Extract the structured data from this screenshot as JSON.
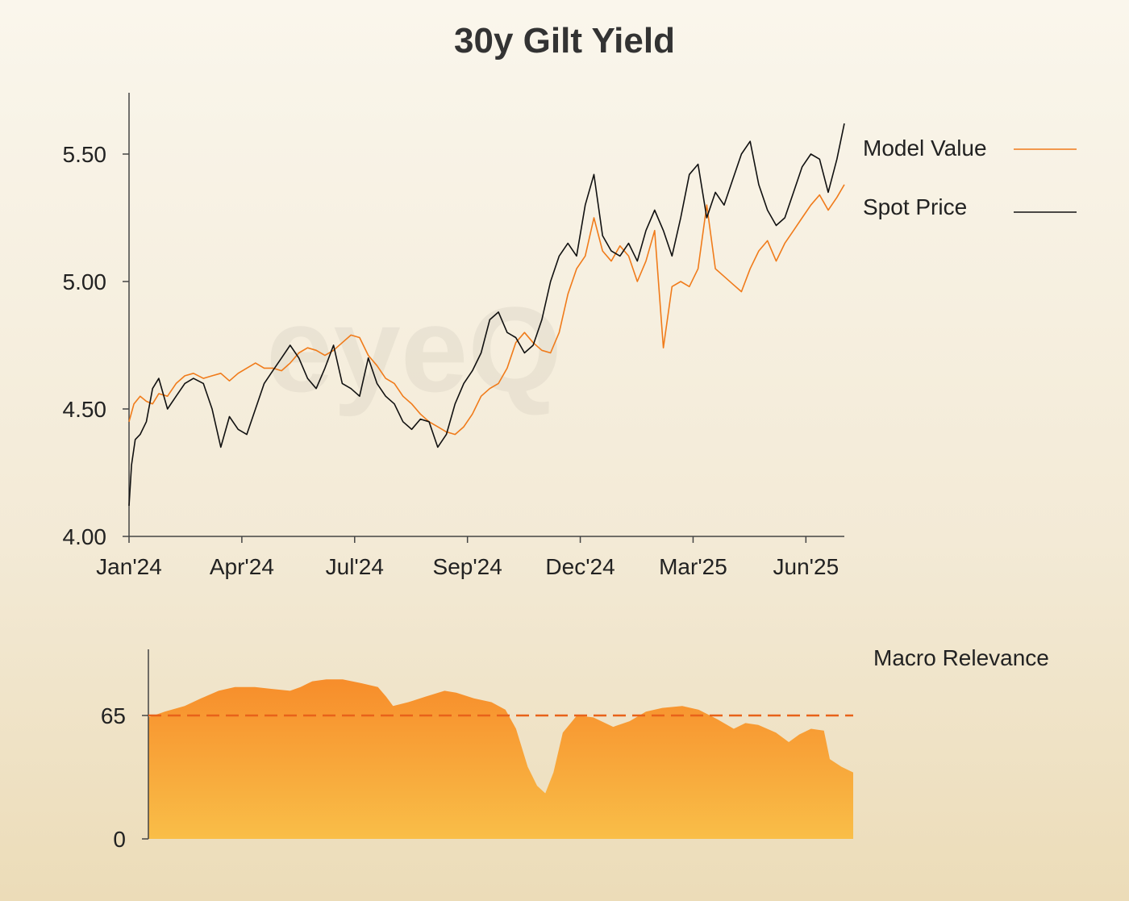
{
  "title": "30y Gilt Yield",
  "watermark": "eyeQ",
  "colors": {
    "model": "#f07b1a",
    "spot": "#111111",
    "axis": "#444444",
    "threshold": "#e8621a",
    "relevance_top": "#f78d2b",
    "relevance_bottom": "#f9be48"
  },
  "chart_data": [
    {
      "type": "line",
      "title": "30y Gilt Yield",
      "xlabel": "",
      "ylabel": "",
      "x_range": [
        "2024-01-01",
        "2025-07-31"
      ],
      "ylim": [
        4.0,
        5.75
      ],
      "y_ticks": [
        4.0,
        4.5,
        5.0,
        5.5
      ],
      "y_tick_labels": [
        "4.00",
        "4.50",
        "5.00",
        "5.50"
      ],
      "x_ticks": [
        "2024-01-01",
        "2024-04-01",
        "2024-07-01",
        "2024-09-30",
        "2024-12-30",
        "2025-03-31",
        "2025-06-30"
      ],
      "x_tick_labels": [
        "Jan'24",
        "Apr'24",
        "Jul'24",
        "Sep'24",
        "Dec'24",
        "Mar'25",
        "Jun'25"
      ],
      "grid": false,
      "legend_position": "top-right",
      "series": [
        {
          "name": "Model Value",
          "points": [
            [
              "2024-01-01",
              4.45
            ],
            [
              "2024-01-05",
              4.52
            ],
            [
              "2024-01-10",
              4.55
            ],
            [
              "2024-01-15",
              4.53
            ],
            [
              "2024-01-20",
              4.52
            ],
            [
              "2024-01-25",
              4.56
            ],
            [
              "2024-02-01",
              4.55
            ],
            [
              "2024-02-08",
              4.6
            ],
            [
              "2024-02-15",
              4.63
            ],
            [
              "2024-02-22",
              4.64
            ],
            [
              "2024-03-01",
              4.62
            ],
            [
              "2024-03-08",
              4.63
            ],
            [
              "2024-03-15",
              4.64
            ],
            [
              "2024-03-22",
              4.61
            ],
            [
              "2024-03-29",
              4.64
            ],
            [
              "2024-04-05",
              4.66
            ],
            [
              "2024-04-12",
              4.68
            ],
            [
              "2024-04-19",
              4.66
            ],
            [
              "2024-04-26",
              4.66
            ],
            [
              "2024-05-03",
              4.65
            ],
            [
              "2024-05-10",
              4.68
            ],
            [
              "2024-05-17",
              4.72
            ],
            [
              "2024-05-24",
              4.74
            ],
            [
              "2024-05-31",
              4.73
            ],
            [
              "2024-06-07",
              4.71
            ],
            [
              "2024-06-14",
              4.73
            ],
            [
              "2024-06-21",
              4.76
            ],
            [
              "2024-06-28",
              4.79
            ],
            [
              "2024-07-05",
              4.78
            ],
            [
              "2024-07-12",
              4.71
            ],
            [
              "2024-07-19",
              4.67
            ],
            [
              "2024-07-26",
              4.62
            ],
            [
              "2024-08-02",
              4.6
            ],
            [
              "2024-08-09",
              4.55
            ],
            [
              "2024-08-16",
              4.52
            ],
            [
              "2024-08-23",
              4.48
            ],
            [
              "2024-08-30",
              4.45
            ],
            [
              "2024-09-06",
              4.43
            ],
            [
              "2024-09-13",
              4.41
            ],
            [
              "2024-09-20",
              4.4
            ],
            [
              "2024-09-27",
              4.43
            ],
            [
              "2024-10-04",
              4.48
            ],
            [
              "2024-10-11",
              4.55
            ],
            [
              "2024-10-18",
              4.58
            ],
            [
              "2024-10-25",
              4.6
            ],
            [
              "2024-11-01",
              4.66
            ],
            [
              "2024-11-08",
              4.76
            ],
            [
              "2024-11-15",
              4.8
            ],
            [
              "2024-11-22",
              4.76
            ],
            [
              "2024-11-29",
              4.73
            ],
            [
              "2024-12-06",
              4.72
            ],
            [
              "2024-12-13",
              4.8
            ],
            [
              "2024-12-20",
              4.95
            ],
            [
              "2024-12-27",
              5.05
            ],
            [
              "2025-01-03",
              5.1
            ],
            [
              "2025-01-10",
              5.25
            ],
            [
              "2025-01-17",
              5.12
            ],
            [
              "2025-01-24",
              5.08
            ],
            [
              "2025-01-31",
              5.14
            ],
            [
              "2025-02-07",
              5.1
            ],
            [
              "2025-02-14",
              5.0
            ],
            [
              "2025-02-21",
              5.08
            ],
            [
              "2025-02-28",
              5.2
            ],
            [
              "2025-03-07",
              4.74
            ],
            [
              "2025-03-14",
              4.98
            ],
            [
              "2025-03-21",
              5.0
            ],
            [
              "2025-03-28",
              4.98
            ],
            [
              "2025-04-04",
              5.05
            ],
            [
              "2025-04-11",
              5.3
            ],
            [
              "2025-04-18",
              5.05
            ],
            [
              "2025-04-25",
              5.02
            ],
            [
              "2025-05-02",
              4.99
            ],
            [
              "2025-05-09",
              4.96
            ],
            [
              "2025-05-16",
              5.05
            ],
            [
              "2025-05-23",
              5.12
            ],
            [
              "2025-05-30",
              5.16
            ],
            [
              "2025-06-06",
              5.08
            ],
            [
              "2025-06-13",
              5.15
            ],
            [
              "2025-06-20",
              5.2
            ],
            [
              "2025-06-27",
              5.25
            ],
            [
              "2025-07-04",
              5.3
            ],
            [
              "2025-07-11",
              5.34
            ],
            [
              "2025-07-18",
              5.28
            ],
            [
              "2025-07-25",
              5.33
            ],
            [
              "2025-07-31",
              5.38
            ]
          ]
        },
        {
          "name": "Spot Price",
          "points": [
            [
              "2024-01-01",
              4.12
            ],
            [
              "2024-01-03",
              4.28
            ],
            [
              "2024-01-06",
              4.38
            ],
            [
              "2024-01-10",
              4.4
            ],
            [
              "2024-01-15",
              4.45
            ],
            [
              "2024-01-20",
              4.58
            ],
            [
              "2024-01-25",
              4.62
            ],
            [
              "2024-02-01",
              4.5
            ],
            [
              "2024-02-08",
              4.55
            ],
            [
              "2024-02-15",
              4.6
            ],
            [
              "2024-02-22",
              4.62
            ],
            [
              "2024-03-01",
              4.6
            ],
            [
              "2024-03-08",
              4.5
            ],
            [
              "2024-03-15",
              4.35
            ],
            [
              "2024-03-22",
              4.47
            ],
            [
              "2024-03-29",
              4.42
            ],
            [
              "2024-04-05",
              4.4
            ],
            [
              "2024-04-12",
              4.5
            ],
            [
              "2024-04-19",
              4.6
            ],
            [
              "2024-04-26",
              4.65
            ],
            [
              "2024-05-03",
              4.7
            ],
            [
              "2024-05-10",
              4.75
            ],
            [
              "2024-05-17",
              4.7
            ],
            [
              "2024-05-24",
              4.62
            ],
            [
              "2024-05-31",
              4.58
            ],
            [
              "2024-06-07",
              4.66
            ],
            [
              "2024-06-14",
              4.75
            ],
            [
              "2024-06-21",
              4.6
            ],
            [
              "2024-06-28",
              4.58
            ],
            [
              "2024-07-05",
              4.55
            ],
            [
              "2024-07-12",
              4.7
            ],
            [
              "2024-07-19",
              4.6
            ],
            [
              "2024-07-26",
              4.55
            ],
            [
              "2024-08-02",
              4.52
            ],
            [
              "2024-08-09",
              4.45
            ],
            [
              "2024-08-16",
              4.42
            ],
            [
              "2024-08-23",
              4.46
            ],
            [
              "2024-08-30",
              4.45
            ],
            [
              "2024-09-06",
              4.35
            ],
            [
              "2024-09-13",
              4.4
            ],
            [
              "2024-09-20",
              4.52
            ],
            [
              "2024-09-27",
              4.6
            ],
            [
              "2024-10-04",
              4.65
            ],
            [
              "2024-10-11",
              4.72
            ],
            [
              "2024-10-18",
              4.85
            ],
            [
              "2024-10-25",
              4.88
            ],
            [
              "2024-11-01",
              4.8
            ],
            [
              "2024-11-08",
              4.78
            ],
            [
              "2024-11-15",
              4.72
            ],
            [
              "2024-11-22",
              4.75
            ],
            [
              "2024-11-29",
              4.85
            ],
            [
              "2024-12-06",
              5.0
            ],
            [
              "2024-12-13",
              5.1
            ],
            [
              "2024-12-20",
              5.15
            ],
            [
              "2024-12-27",
              5.1
            ],
            [
              "2025-01-03",
              5.3
            ],
            [
              "2025-01-10",
              5.42
            ],
            [
              "2025-01-17",
              5.18
            ],
            [
              "2025-01-24",
              5.12
            ],
            [
              "2025-01-31",
              5.1
            ],
            [
              "2025-02-07",
              5.15
            ],
            [
              "2025-02-14",
              5.08
            ],
            [
              "2025-02-21",
              5.2
            ],
            [
              "2025-02-28",
              5.28
            ],
            [
              "2025-03-07",
              5.2
            ],
            [
              "2025-03-14",
              5.1
            ],
            [
              "2025-03-21",
              5.25
            ],
            [
              "2025-03-28",
              5.42
            ],
            [
              "2025-04-04",
              5.46
            ],
            [
              "2025-04-11",
              5.25
            ],
            [
              "2025-04-18",
              5.35
            ],
            [
              "2025-04-25",
              5.3
            ],
            [
              "2025-05-02",
              5.4
            ],
            [
              "2025-05-09",
              5.5
            ],
            [
              "2025-05-16",
              5.55
            ],
            [
              "2025-05-23",
              5.38
            ],
            [
              "2025-05-30",
              5.28
            ],
            [
              "2025-06-06",
              5.22
            ],
            [
              "2025-06-13",
              5.25
            ],
            [
              "2025-06-20",
              5.35
            ],
            [
              "2025-06-27",
              5.45
            ],
            [
              "2025-07-04",
              5.5
            ],
            [
              "2025-07-11",
              5.48
            ],
            [
              "2025-07-18",
              5.35
            ],
            [
              "2025-07-25",
              5.48
            ],
            [
              "2025-07-31",
              5.62
            ]
          ]
        }
      ]
    },
    {
      "type": "area",
      "title": "Macro Relevance",
      "x_range": [
        "2024-01-01",
        "2025-07-31"
      ],
      "ylim": [
        0,
        100
      ],
      "y_ticks": [
        0,
        65
      ],
      "y_tick_labels": [
        "0",
        "65"
      ],
      "threshold": 65,
      "grid": false,
      "series": [
        {
          "name": "Macro Relevance",
          "points": [
            [
              "2024-01-01",
              64
            ],
            [
              "2024-01-15",
              67
            ],
            [
              "2024-02-01",
              70
            ],
            [
              "2024-02-15",
              74
            ],
            [
              "2024-03-01",
              78
            ],
            [
              "2024-03-15",
              80
            ],
            [
              "2024-04-01",
              80
            ],
            [
              "2024-04-15",
              79
            ],
            [
              "2024-05-01",
              78
            ],
            [
              "2024-05-10",
              80
            ],
            [
              "2024-05-20",
              83
            ],
            [
              "2024-06-01",
              84
            ],
            [
              "2024-06-15",
              84
            ],
            [
              "2024-07-01",
              82
            ],
            [
              "2024-07-15",
              80
            ],
            [
              "2024-07-22",
              75
            ],
            [
              "2024-07-28",
              70
            ],
            [
              "2024-08-10",
              72
            ],
            [
              "2024-08-25",
              75
            ],
            [
              "2024-09-10",
              78
            ],
            [
              "2024-09-20",
              77
            ],
            [
              "2024-10-05",
              74
            ],
            [
              "2024-10-20",
              72
            ],
            [
              "2024-11-01",
              68
            ],
            [
              "2024-11-10",
              58
            ],
            [
              "2024-11-20",
              38
            ],
            [
              "2024-11-28",
              28
            ],
            [
              "2024-12-05",
              24
            ],
            [
              "2024-12-12",
              35
            ],
            [
              "2024-12-20",
              56
            ],
            [
              "2025-01-01",
              65
            ],
            [
              "2025-01-15",
              64
            ],
            [
              "2025-02-01",
              59
            ],
            [
              "2025-02-15",
              62
            ],
            [
              "2025-03-01",
              67
            ],
            [
              "2025-03-15",
              69
            ],
            [
              "2025-04-01",
              70
            ],
            [
              "2025-04-15",
              68
            ],
            [
              "2025-05-01",
              63
            ],
            [
              "2025-05-15",
              58
            ],
            [
              "2025-05-25",
              61
            ],
            [
              "2025-06-05",
              60
            ],
            [
              "2025-06-20",
              56
            ],
            [
              "2025-07-01",
              51
            ],
            [
              "2025-07-10",
              55
            ],
            [
              "2025-07-20",
              58
            ],
            [
              "2025-07-31",
              57
            ],
            [
              "2025-08-05",
              42
            ],
            [
              "2025-08-15",
              38
            ],
            [
              "2025-08-25",
              35
            ]
          ]
        }
      ]
    }
  ]
}
